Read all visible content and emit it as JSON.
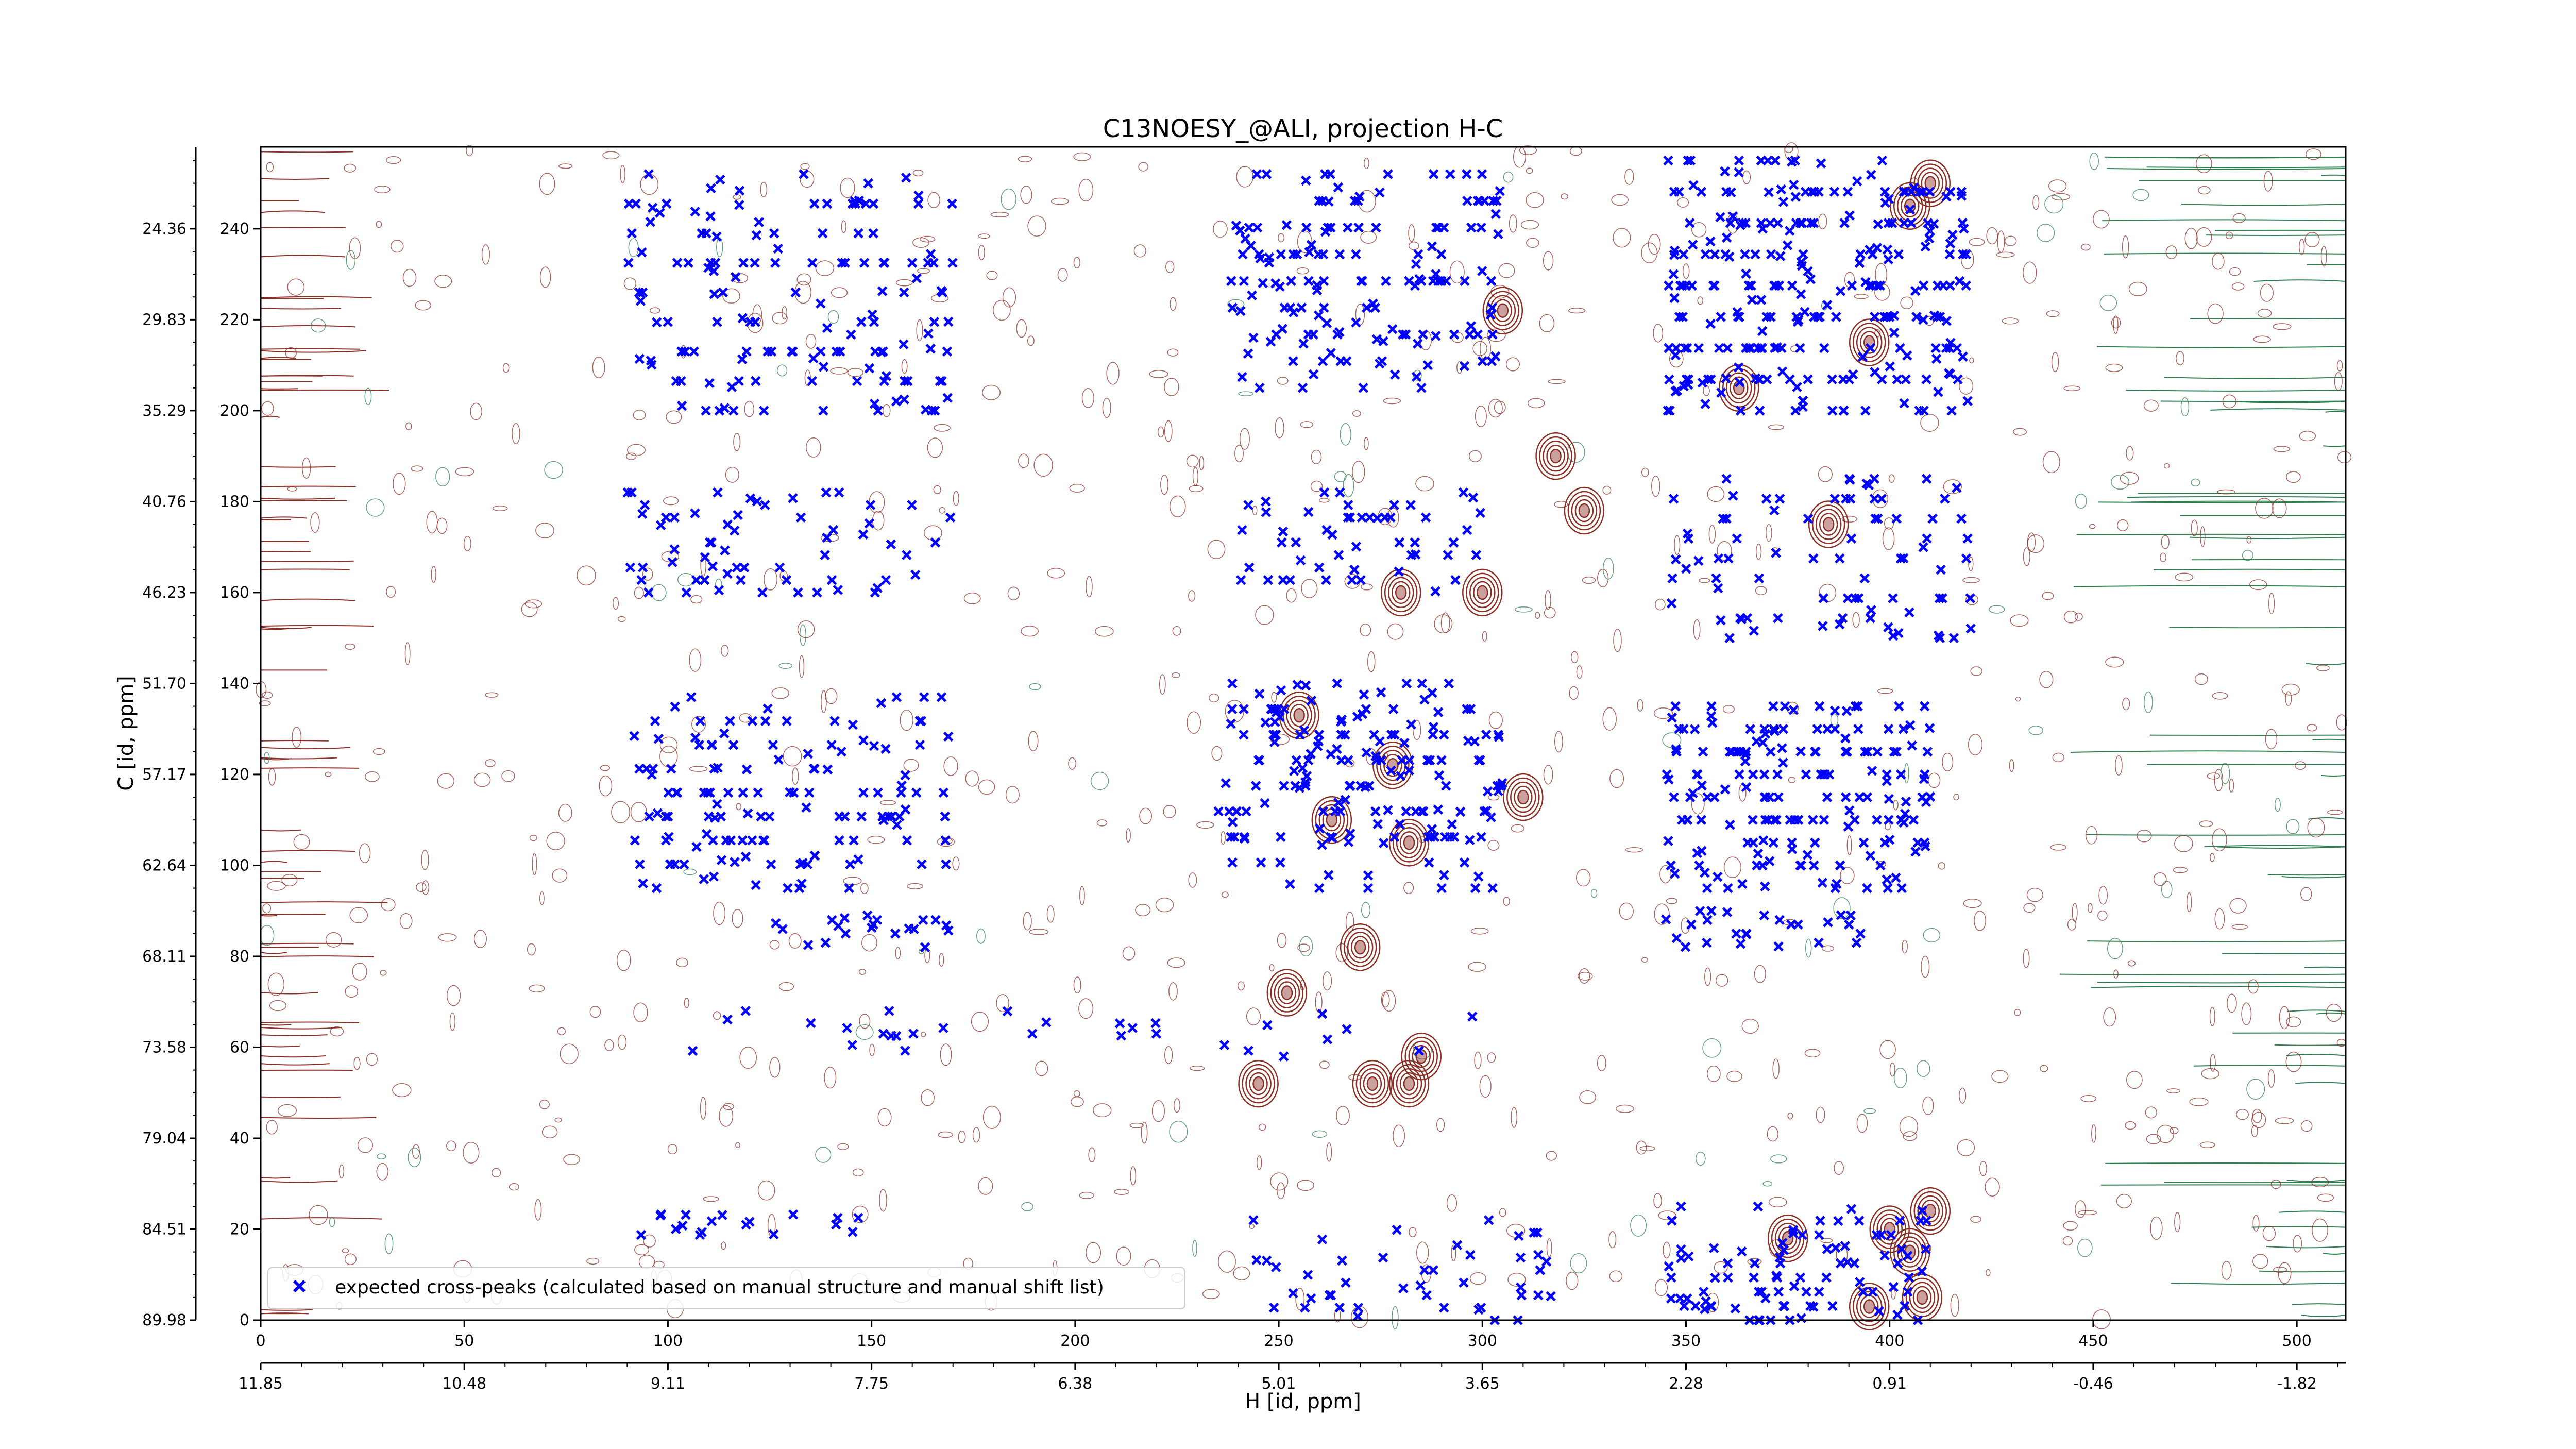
{
  "chart_data": {
    "type": "scatter",
    "title": "C13NOESY_@ALI, projection H-C",
    "xlabel": "H [id, ppm]",
    "ylabel": "C [id, ppm]",
    "xlim": [
      0,
      512
    ],
    "ylim": [
      0,
      258
    ],
    "x_ticks_index": [
      "0",
      "50",
      "100",
      "150",
      "200",
      "250",
      "300",
      "350",
      "400",
      "450",
      "500"
    ],
    "x_ticks_ppm": [
      "11.85",
      "10.48",
      "9.11",
      "7.75",
      "6.38",
      "5.01",
      "3.65",
      "2.28",
      "0.91",
      "-0.46",
      "-1.82"
    ],
    "y_ticks_index": [
      "0",
      "20",
      "40",
      "60",
      "80",
      "100",
      "120",
      "140",
      "160",
      "180",
      "200",
      "220",
      "240"
    ],
    "y_ticks_ppm": [
      "89.98",
      "84.51",
      "79.04",
      "73.58",
      "68.11",
      "62.64",
      "57.17",
      "51.70",
      "46.23",
      "40.76",
      "35.29",
      "29.83",
      "24.36"
    ],
    "legend": {
      "placement": "lower-left",
      "label": "expected cross-peaks (calculated based on manual structure and manual shift list)"
    },
    "series": [
      {
        "name": "expected cross-peaks (calculated based on manual structure and manual shift list)",
        "color": "#0000ff",
        "marker": "x",
        "clusters": [
          {
            "x": [
              90,
              170
            ],
            "y": [
              200,
              252
            ],
            "n": 140
          },
          {
            "x": [
              238,
              305
            ],
            "y": [
              205,
              252
            ],
            "n": 150
          },
          {
            "x": [
              345,
              420
            ],
            "y": [
              200,
              255
            ],
            "n": 260
          },
          {
            "x": [
              90,
              170
            ],
            "y": [
              95,
              137
            ],
            "n": 130
          },
          {
            "x": [
              235,
              305
            ],
            "y": [
              95,
              140
            ],
            "n": 170
          },
          {
            "x": [
              345,
              410
            ],
            "y": [
              95,
              135
            ],
            "n": 170
          },
          {
            "x": [
              90,
              170
            ],
            "y": [
              160,
              182
            ],
            "n": 60
          },
          {
            "x": [
              240,
              300
            ],
            "y": [
              160,
              182
            ],
            "n": 50
          },
          {
            "x": [
              345,
              420
            ],
            "y": [
              150,
              185
            ],
            "n": 80
          },
          {
            "x": [
              120,
              170
            ],
            "y": [
              82,
              90
            ],
            "n": 20
          },
          {
            "x": [
              345,
              400
            ],
            "y": [
              82,
              90
            ],
            "n": 25
          },
          {
            "x": [
              345,
              410
            ],
            "y": [
              0,
              25
            ],
            "n": 90
          },
          {
            "x": [
              240,
              320
            ],
            "y": [
              0,
              22
            ],
            "n": 45
          },
          {
            "x": [
              85,
              160
            ],
            "y": [
              18,
              24
            ],
            "n": 18
          },
          {
            "x": [
              95,
              300
            ],
            "y": [
              58,
              68
            ],
            "n": 30
          }
        ]
      },
      {
        "name": "",
        "color": "#8b2f25",
        "marker": "contour-positive"
      },
      {
        "name": "",
        "color": "#2e7d4f",
        "marker": "contour-negative"
      }
    ]
  }
}
